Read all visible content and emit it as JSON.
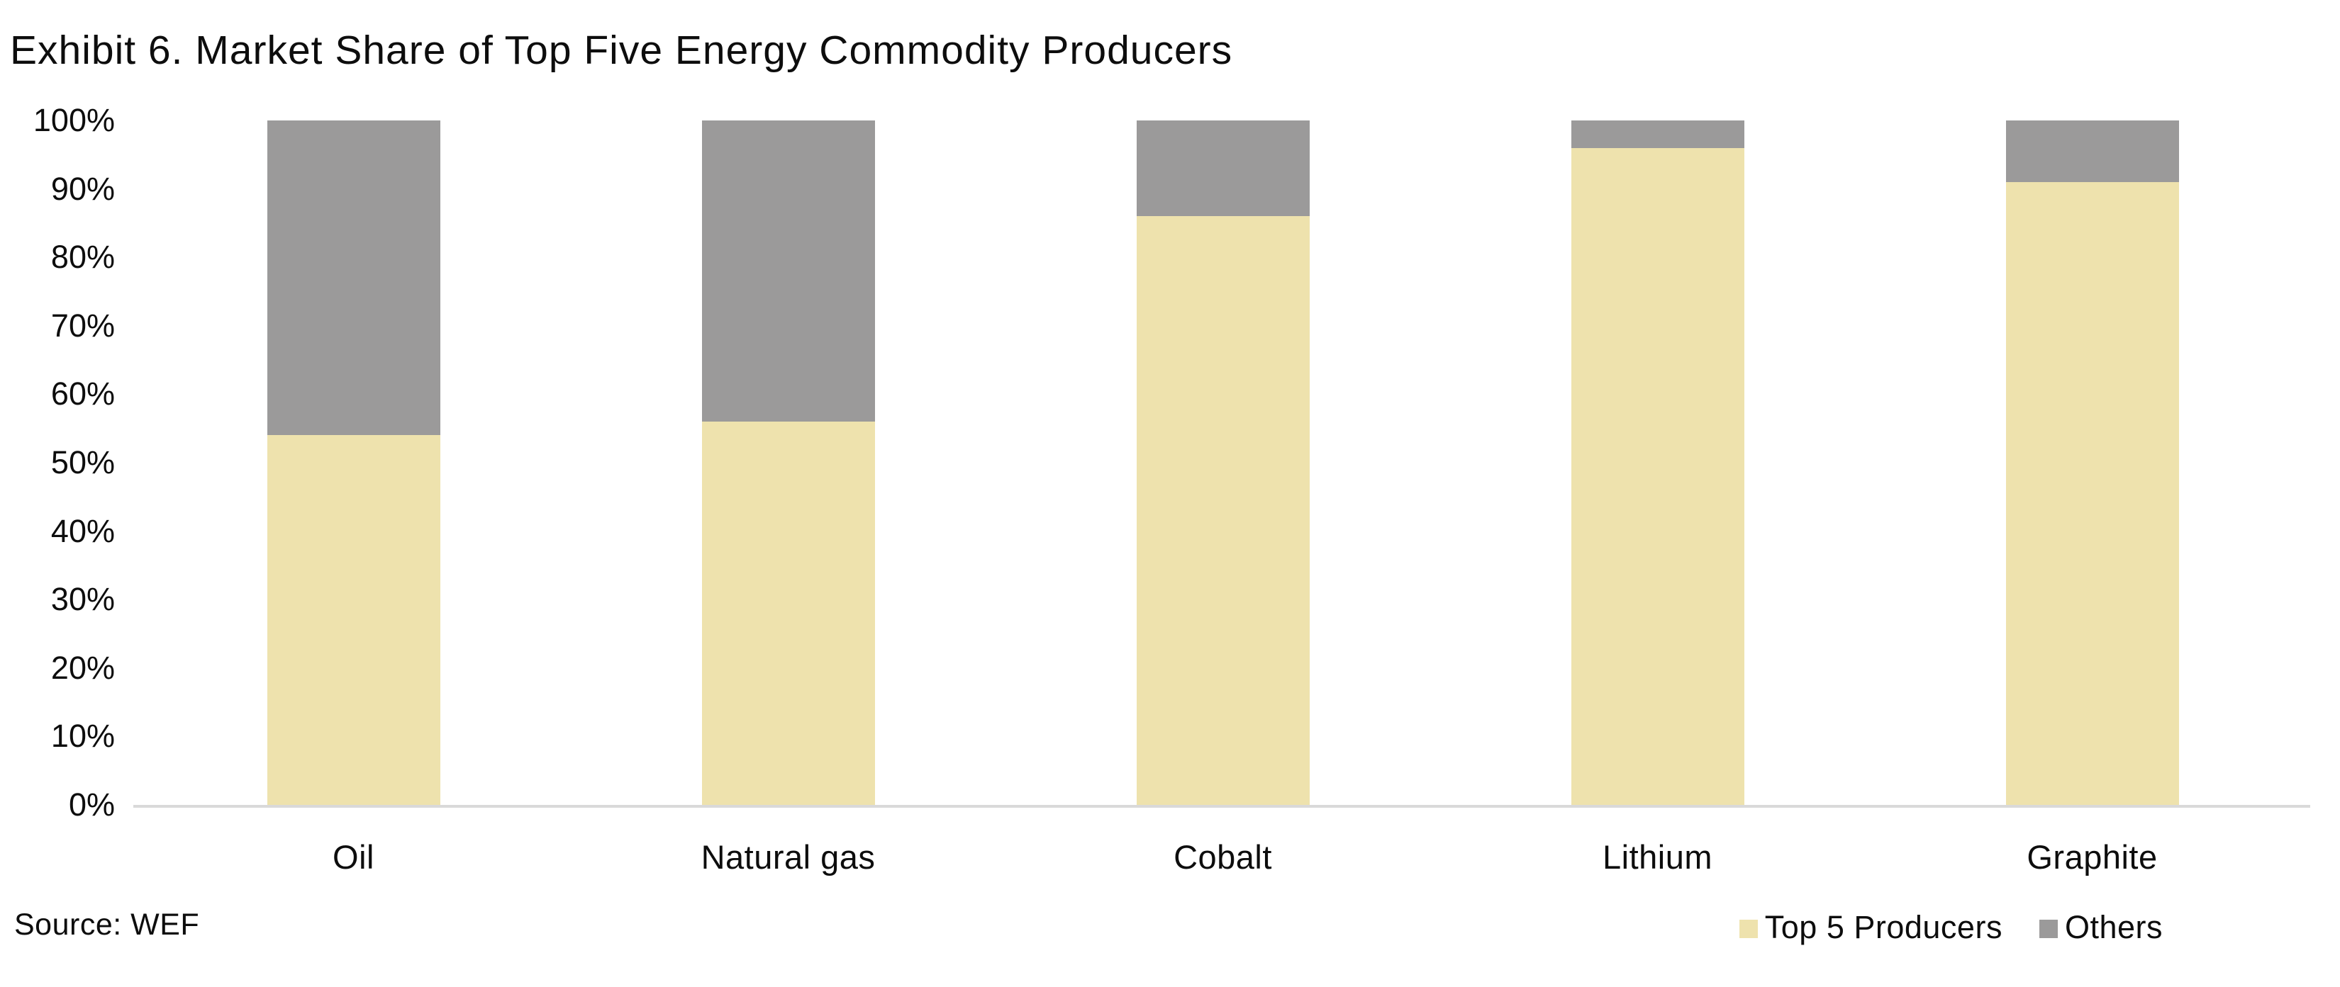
{
  "title": "Exhibit 6. Market Share of Top Five Energy Commodity Producers",
  "source_note": "Source: WEF",
  "colors": {
    "top5": "#eee2ad",
    "others": "#9b9a9a",
    "axis_line": "#d9d9d9",
    "text": "#0d0d0d",
    "background": "#ffffff"
  },
  "chart_data": {
    "type": "bar",
    "stacked": true,
    "orientation": "vertical",
    "title": "Exhibit 6. Market Share of Top Five Energy Commodity Producers",
    "categories": [
      "Oil",
      "Natural gas",
      "Cobalt",
      "Lithium",
      "Graphite"
    ],
    "series": [
      {
        "name": "Top 5 Producers",
        "color": "#eee2ad",
        "values": [
          54,
          56,
          86,
          96,
          91
        ]
      },
      {
        "name": "Others",
        "color": "#9b9a9a",
        "values": [
          46,
          44,
          14,
          4,
          9
        ]
      }
    ],
    "xlabel": "",
    "ylabel": "",
    "ylim": [
      0,
      100
    ],
    "yticks": [
      "0%",
      "10%",
      "20%",
      "30%",
      "40%",
      "50%",
      "60%",
      "70%",
      "80%",
      "90%",
      "100%"
    ],
    "grid": false,
    "legend_position": "bottom-right",
    "annotations": [
      "Source: WEF"
    ]
  }
}
